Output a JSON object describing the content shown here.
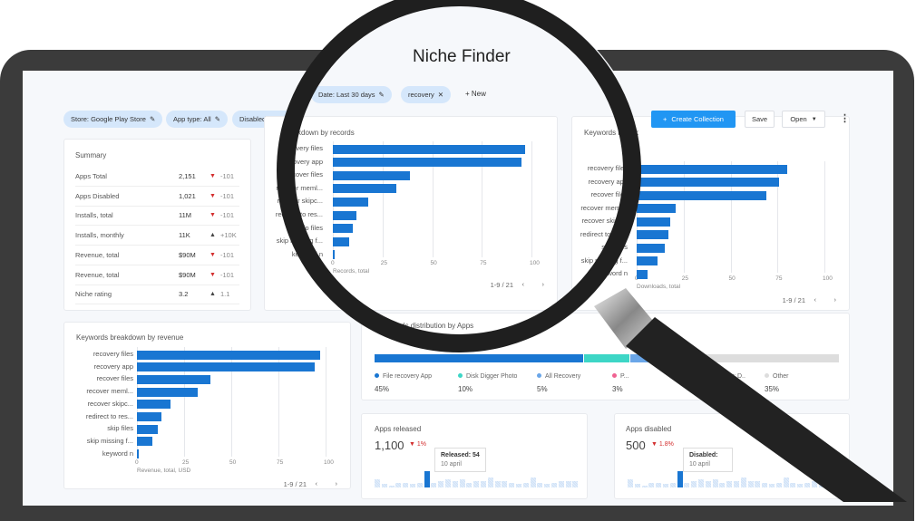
{
  "title": "Niche Finder",
  "filters": {
    "date": "Date: Last 30 days",
    "keyword": "recovery",
    "new": "New",
    "store": "Store: Google Play Store",
    "app_type": "App type: All",
    "disabled": "Disabled apps"
  },
  "toolbar": {
    "create": "Create Collection",
    "save": "Save",
    "open": "Open"
  },
  "summary": {
    "title": "Summary",
    "rows": [
      {
        "label": "Apps Total",
        "value": "2,151",
        "trend": "down",
        "delta": "-101"
      },
      {
        "label": "Apps Disabled",
        "value": "1,021",
        "trend": "down",
        "delta": "-101"
      },
      {
        "label": "Installs, total",
        "value": "11M",
        "trend": "down",
        "delta": "-101"
      },
      {
        "label": "Installs, monthly",
        "value": "11K",
        "trend": "up",
        "delta": "+10K"
      },
      {
        "label": "Revenue, total",
        "value": "$90M",
        "trend": "down",
        "delta": "-101"
      },
      {
        "label": "Revenue, total",
        "value": "$90M",
        "trend": "down",
        "delta": "-101"
      },
      {
        "label": "Niche rating",
        "value": "3.2",
        "trend": "up",
        "delta": "1.1"
      }
    ]
  },
  "colors": {
    "bar": "#1976d2",
    "accent": "#2196f3",
    "down": "#d32f2f",
    "up": "#444444"
  },
  "chart_data": [
    {
      "type": "bar",
      "title": "breakdown by records",
      "categories": [
        "recovery files",
        "recovery app",
        "recover files",
        "recover meml...",
        "recover skipc...",
        "redirect to res...",
        "skip files",
        "skip missing f...",
        "keyword n"
      ],
      "values": [
        97,
        95,
        39,
        32,
        18,
        12,
        10,
        8,
        1
      ],
      "xlabel": "Records, total",
      "xlim": [
        0,
        100
      ],
      "ticks": [
        "0",
        "25",
        "50",
        "75",
        "100"
      ],
      "pager": "1-9 / 21"
    },
    {
      "type": "bar",
      "title": "Keywords breakdown by downloads",
      "categories": [
        "recovery files",
        "recovery app",
        "recover files",
        "recover meml...",
        "recover skipc...",
        "redirect to res...",
        "skip files",
        "skip missing f...",
        "keyword n"
      ],
      "values": [
        80,
        76,
        69,
        21,
        18,
        17,
        15,
        11,
        6
      ],
      "xlabel": "Downloads, total",
      "xlim": [
        0,
        100
      ],
      "ticks": [
        "0",
        "25",
        "50",
        "75",
        "100"
      ],
      "pager": "1-9 / 21"
    },
    {
      "type": "bar",
      "title": "Keywords breakdown by revenue",
      "categories": [
        "recovery files",
        "recovery app",
        "recover files",
        "recover meml...",
        "recover skipc...",
        "redirect to res...",
        "skip files",
        "skip missing f...",
        "keyword n"
      ],
      "values": [
        97,
        94,
        39,
        32,
        18,
        13,
        11,
        8,
        1
      ],
      "xlabel": "Revenue, total, USD",
      "xlim": [
        0,
        100
      ],
      "ticks": [
        "0",
        "25",
        "50",
        "75",
        "100"
      ],
      "pager": "1-9 / 21"
    }
  ],
  "distribution": {
    "title": "Downloads distribution by Apps",
    "items": [
      {
        "name": "File recovery App",
        "pct": "45%",
        "value": 45,
        "color": "#1976d2"
      },
      {
        "name": "Disk Digger Photo",
        "pct": "10%",
        "value": 10,
        "color": "#3dd6c6"
      },
      {
        "name": "All Recovery",
        "pct": "5%",
        "value": 5,
        "color": "#6aa6e8"
      },
      {
        "name": "P...",
        "pct": "3%",
        "value": 3,
        "color": "#f06292"
      },
      {
        "name": "File recovery: D..",
        "pct": "",
        "value": 2,
        "color": "#e53935"
      },
      {
        "name": "Other",
        "pct": "35%",
        "value": 35,
        "color": "#dddddd"
      }
    ]
  },
  "released": {
    "title": "Apps released",
    "value": "1,100",
    "delta": "1%",
    "tooltip_title": "Released: 54",
    "tooltip_date": "10 april",
    "spark": [
      5,
      2,
      1,
      3,
      3,
      2,
      3,
      10,
      3,
      4,
      5,
      4,
      5,
      3,
      4,
      4,
      6,
      4,
      4,
      3,
      2,
      3,
      6,
      3,
      2,
      3,
      4,
      4,
      4
    ]
  },
  "disabled": {
    "title": "Apps disabled",
    "value": "500",
    "delta": "1.8%",
    "tooltip_title": "Disabled:",
    "tooltip_date": "10 april",
    "spark": [
      5,
      2,
      1,
      3,
      3,
      2,
      3,
      10,
      3,
      4,
      5,
      4,
      5,
      3,
      4,
      4,
      6,
      4,
      4,
      3,
      2,
      3,
      6,
      3,
      2,
      3,
      4,
      4,
      4
    ]
  }
}
